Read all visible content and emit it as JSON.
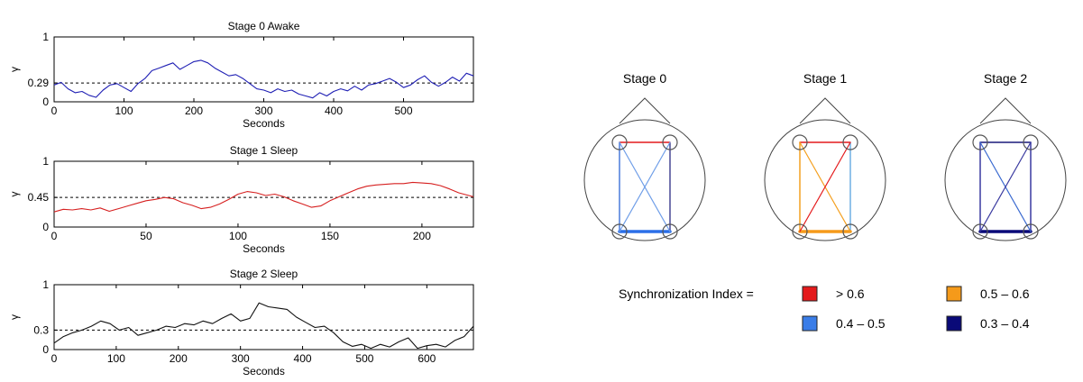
{
  "chart_data": [
    {
      "type": "line",
      "title": "Stage 0 Awake",
      "xlabel": "Seconds",
      "ylabel": "γ",
      "xlim": [
        0,
        600
      ],
      "ylim": [
        0,
        1
      ],
      "xticks": [
        0,
        100,
        200,
        300,
        400,
        500
      ],
      "yticks": [
        0,
        1
      ],
      "threshold": 0.29,
      "threshold_label": "0.29",
      "series": [
        {
          "color": "#1f1fb4",
          "x": [
            0,
            10,
            20,
            30,
            40,
            50,
            60,
            70,
            80,
            90,
            100,
            110,
            120,
            130,
            140,
            150,
            160,
            170,
            180,
            190,
            200,
            210,
            220,
            230,
            240,
            250,
            260,
            270,
            280,
            290,
            300,
            310,
            320,
            330,
            340,
            350,
            360,
            370,
            380,
            390,
            400,
            410,
            420,
            430,
            440,
            450,
            460,
            470,
            480,
            490,
            500,
            510,
            520,
            530,
            540,
            550,
            560,
            570,
            580,
            590,
            600
          ],
          "y": [
            0.26,
            0.3,
            0.2,
            0.14,
            0.16,
            0.1,
            0.07,
            0.18,
            0.26,
            0.28,
            0.22,
            0.16,
            0.28,
            0.36,
            0.48,
            0.52,
            0.56,
            0.6,
            0.5,
            0.56,
            0.62,
            0.64,
            0.6,
            0.52,
            0.46,
            0.4,
            0.42,
            0.36,
            0.28,
            0.2,
            0.18,
            0.14,
            0.2,
            0.16,
            0.18,
            0.12,
            0.09,
            0.06,
            0.14,
            0.09,
            0.16,
            0.2,
            0.17,
            0.24,
            0.18,
            0.26,
            0.28,
            0.32,
            0.36,
            0.3,
            0.22,
            0.26,
            0.34,
            0.4,
            0.3,
            0.24,
            0.3,
            0.38,
            0.32,
            0.44,
            0.4
          ]
        }
      ]
    },
    {
      "type": "line",
      "title": "Stage 1 Sleep",
      "xlabel": "Seconds",
      "ylabel": "γ",
      "xlim": [
        0,
        228
      ],
      "ylim": [
        0,
        1
      ],
      "xticks": [
        0,
        50,
        100,
        150,
        200
      ],
      "yticks": [
        0,
        1
      ],
      "threshold": 0.45,
      "threshold_label": "0.45",
      "series": [
        {
          "color": "#d62020",
          "x": [
            0,
            5,
            10,
            15,
            20,
            25,
            30,
            35,
            40,
            45,
            50,
            55,
            60,
            65,
            70,
            75,
            80,
            85,
            90,
            95,
            100,
            105,
            110,
            115,
            120,
            125,
            130,
            135,
            140,
            145,
            150,
            155,
            160,
            165,
            170,
            175,
            180,
            185,
            190,
            195,
            200,
            205,
            210,
            215,
            220,
            228
          ],
          "y": [
            0.23,
            0.27,
            0.26,
            0.28,
            0.26,
            0.29,
            0.24,
            0.28,
            0.32,
            0.36,
            0.4,
            0.42,
            0.45,
            0.43,
            0.37,
            0.33,
            0.28,
            0.3,
            0.35,
            0.42,
            0.5,
            0.54,
            0.52,
            0.48,
            0.5,
            0.46,
            0.4,
            0.35,
            0.3,
            0.32,
            0.4,
            0.46,
            0.52,
            0.58,
            0.62,
            0.64,
            0.65,
            0.66,
            0.66,
            0.68,
            0.67,
            0.66,
            0.63,
            0.58,
            0.52,
            0.46
          ]
        }
      ]
    },
    {
      "type": "line",
      "title": "Stage 2 Sleep",
      "xlabel": "Seconds",
      "ylabel": "γ",
      "xlim": [
        0,
        675
      ],
      "ylim": [
        0,
        1
      ],
      "xticks": [
        0,
        100,
        200,
        300,
        400,
        500,
        600
      ],
      "yticks": [
        0,
        1
      ],
      "threshold": 0.3,
      "threshold_label": "0.3",
      "series": [
        {
          "color": "#111111",
          "x": [
            0,
            15,
            30,
            45,
            60,
            75,
            90,
            105,
            120,
            135,
            150,
            165,
            180,
            195,
            210,
            225,
            240,
            255,
            270,
            285,
            300,
            315,
            330,
            345,
            360,
            375,
            390,
            405,
            420,
            435,
            450,
            465,
            480,
            495,
            510,
            525,
            540,
            555,
            570,
            585,
            600,
            615,
            630,
            645,
            660,
            675
          ],
          "y": [
            0.1,
            0.2,
            0.26,
            0.3,
            0.36,
            0.44,
            0.4,
            0.3,
            0.34,
            0.22,
            0.26,
            0.3,
            0.36,
            0.34,
            0.4,
            0.38,
            0.44,
            0.4,
            0.48,
            0.55,
            0.44,
            0.48,
            0.72,
            0.66,
            0.64,
            0.62,
            0.5,
            0.42,
            0.34,
            0.36,
            0.26,
            0.12,
            0.05,
            0.08,
            0.02,
            0.08,
            0.04,
            0.12,
            0.18,
            0.02,
            0.06,
            0.08,
            0.04,
            0.14,
            0.2,
            0.36
          ]
        }
      ]
    }
  ],
  "diagram": {
    "stages": [
      {
        "label": "Stage 0",
        "edges": [
          {
            "from": "TL",
            "to": "TR",
            "color": "#e41a1c",
            "width": 1.5
          },
          {
            "from": "TL",
            "to": "BL",
            "color": "#4a7bdc",
            "width": 1.5
          },
          {
            "from": "TR",
            "to": "BR",
            "color": "#1a1a7a",
            "width": 1.2
          },
          {
            "from": "BL",
            "to": "BR",
            "color": "#2b6fe8",
            "width": 3.5
          },
          {
            "from": "TL",
            "to": "BR",
            "color": "#6f9ee8",
            "width": 1.2
          },
          {
            "from": "TR",
            "to": "BL",
            "color": "#6f9ee8",
            "width": 1.2
          }
        ]
      },
      {
        "label": "Stage 1",
        "edges": [
          {
            "from": "TL",
            "to": "TR",
            "color": "#e41a1c",
            "width": 1.5
          },
          {
            "from": "TL",
            "to": "BL",
            "color": "#f4a020",
            "width": 1.5
          },
          {
            "from": "TR",
            "to": "BR",
            "color": "#4a9bdc",
            "width": 1.2
          },
          {
            "from": "BL",
            "to": "BR",
            "color": "#f59a1a",
            "width": 3.5
          },
          {
            "from": "TL",
            "to": "BR",
            "color": "#f4a020",
            "width": 1.2
          },
          {
            "from": "TR",
            "to": "BL",
            "color": "#e41a1c",
            "width": 1.2
          }
        ]
      },
      {
        "label": "Stage 2",
        "edges": [
          {
            "from": "TL",
            "to": "TR",
            "color": "#1a1a7a",
            "width": 1.5
          },
          {
            "from": "TL",
            "to": "BL",
            "color": "#3a3aa0",
            "width": 1.5
          },
          {
            "from": "TR",
            "to": "BR",
            "color": "#3a3aa0",
            "width": 1.5
          },
          {
            "from": "BL",
            "to": "BR",
            "color": "#0a0a78",
            "width": 3.5
          },
          {
            "from": "TL",
            "to": "BR",
            "color": "#3a6ad0",
            "width": 1.2
          },
          {
            "from": "TR",
            "to": "BL",
            "color": "#3a3aa0",
            "width": 1.2
          }
        ]
      }
    ],
    "legend": {
      "title": "Synchronization Index =",
      "items": [
        {
          "label": "> 0.6",
          "color": "#e41a1c"
        },
        {
          "label": "0.5 – 0.6",
          "color": "#f59a1a"
        },
        {
          "label": "0.4 – 0.5",
          "color": "#3a7de8"
        },
        {
          "label": "0.3 – 0.4",
          "color": "#0a0a78"
        }
      ]
    }
  }
}
